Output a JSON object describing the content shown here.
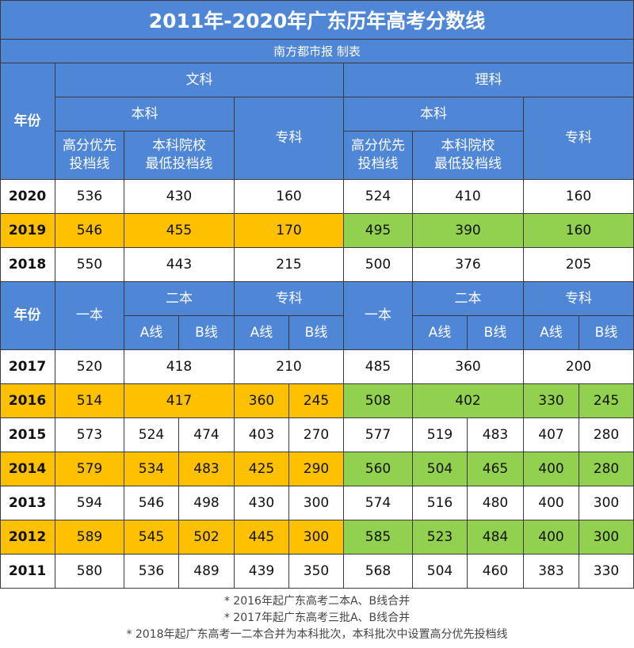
{
  "header": {
    "title": "2011年-2020年广东历年高考分数线",
    "subtitle": "南方都市报 制表"
  },
  "table": {
    "header1": {
      "year": "年份",
      "groups": [
        "文科",
        "理科"
      ],
      "sub": [
        [
          "本科",
          "专科"
        ],
        [
          "本科",
          "专科"
        ]
      ],
      "cols": [
        [
          "高分优先\n投档线",
          "本科院校\n最低投档线"
        ],
        [
          "高分优先\n投档线",
          "本科院校\n最低投档线"
        ]
      ]
    },
    "rows1": [
      {
        "year": "2020",
        "values": [
          536,
          430,
          160,
          524,
          410,
          160
        ]
      },
      {
        "year": "2019",
        "highlight": true,
        "values": [
          546,
          455,
          170,
          495,
          390,
          160
        ]
      },
      {
        "year": "2018",
        "values": [
          550,
          443,
          215,
          500,
          376,
          205
        ]
      }
    ],
    "header2": {
      "year": "年份",
      "groups": [
        [
          "一本",
          "二本",
          "专科"
        ],
        [
          "一本",
          "二本",
          "专科"
        ]
      ],
      "lines": [
        [
          "A线",
          "B线",
          "A线",
          "B线"
        ],
        [
          "A线",
          "B线",
          "A线",
          "B线"
        ]
      ]
    },
    "rows2": [
      {
        "year": "2017",
        "values": [
          520,
          418,
          210,
          485,
          360,
          200
        ]
      },
      {
        "year": "2016",
        "highlight": true,
        "values": [
          514,
          417,
          360,
          245,
          508,
          402,
          330,
          245
        ]
      },
      {
        "year": "2015",
        "values": [
          573,
          524,
          474,
          403,
          270,
          577,
          519,
          483,
          407,
          280
        ]
      },
      {
        "year": "2014",
        "highlight": true,
        "values": [
          579,
          534,
          483,
          425,
          290,
          560,
          504,
          465,
          400,
          280
        ]
      },
      {
        "year": "2013",
        "values": [
          594,
          546,
          498,
          430,
          300,
          574,
          516,
          480,
          400,
          300
        ]
      },
      {
        "year": "2012",
        "highlight": true,
        "values": [
          589,
          545,
          502,
          445,
          300,
          585,
          523,
          484,
          400,
          300
        ]
      },
      {
        "year": "2011",
        "values": [
          580,
          536,
          489,
          439,
          350,
          568,
          504,
          460,
          383,
          330
        ]
      }
    ]
  },
  "footnotes": [
    "* 2016年起广东高考二本A、B线合并",
    "* 2017年起广东高考三批A、B线合并",
    "* 2018年起广东高考一二本合并为本科批次，本科批次中设置高分优先投档线"
  ]
}
